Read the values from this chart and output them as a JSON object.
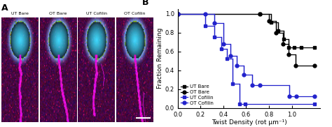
{
  "xlabel": "Twist Density (rot μm⁻¹)",
  "ylabel": "Fraction Remaining",
  "xlim": [
    0,
    1.25
  ],
  "ylim": [
    0,
    1.05
  ],
  "xticks": [
    0,
    0.2,
    0.4,
    0.6,
    0.8,
    1.0
  ],
  "yticks": [
    0,
    0.2,
    0.4,
    0.6,
    0.8,
    1.0
  ],
  "panel_labels": [
    "UT Bare",
    "OT Bare",
    "UT Cofilin",
    "OT Cofilin"
  ],
  "series": [
    {
      "label": "UT Bare",
      "color": "black",
      "marker": "s",
      "x": [
        0,
        0.72,
        0.82,
        0.88,
        0.93,
        0.97,
        1.02,
        1.08,
        1.2
      ],
      "y": [
        1.0,
        1.0,
        0.91,
        0.82,
        0.73,
        0.64,
        0.64,
        0.64,
        0.64
      ]
    },
    {
      "label": "OT Bare",
      "color": "black",
      "marker": "o",
      "x": [
        0,
        0.72,
        0.8,
        0.86,
        0.92,
        0.97,
        1.03,
        1.2
      ],
      "y": [
        1.0,
        1.0,
        0.92,
        0.8,
        0.68,
        0.57,
        0.45,
        0.45
      ]
    },
    {
      "label": "UT Cofilin",
      "color": "#2222cc",
      "marker": "s",
      "x": [
        0,
        0.24,
        0.32,
        0.38,
        0.43,
        0.48,
        0.54,
        0.59,
        1.2
      ],
      "y": [
        1.0,
        0.87,
        0.75,
        0.63,
        0.52,
        0.26,
        0.04,
        0.04,
        0.04
      ]
    },
    {
      "label": "OT Cofilin",
      "color": "#2222cc",
      "marker": "o",
      "x": [
        0,
        0.24,
        0.32,
        0.4,
        0.46,
        0.52,
        0.58,
        0.65,
        0.72,
        0.98,
        1.04,
        1.2
      ],
      "y": [
        1.0,
        1.0,
        0.9,
        0.68,
        0.55,
        0.45,
        0.35,
        0.24,
        0.24,
        0.12,
        0.12,
        0.12
      ]
    }
  ],
  "legend_colors": [
    "black",
    "black",
    "#2222cc",
    "#2222cc"
  ],
  "legend_markers": [
    "s",
    "o",
    "s",
    "o"
  ],
  "legend_labels": [
    "UT Bare",
    "OT Bare",
    "UT Cofilin",
    "OT Cofilin"
  ],
  "bg_color": "#1a0828",
  "noise_color_r": 80,
  "noise_color_g": 10,
  "noise_color_b": 80,
  "bead_color": [
    0,
    220,
    255
  ],
  "filament_color": [
    220,
    0,
    220
  ]
}
